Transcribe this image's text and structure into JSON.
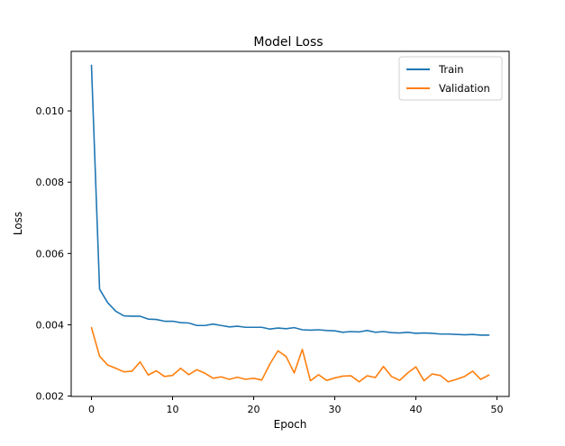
{
  "chart_data": {
    "type": "line",
    "title": "Model Loss",
    "xlabel": "Epoch",
    "ylabel": "Loss",
    "xlim": [
      -2.5,
      51.5
    ],
    "ylim": [
      0.00199,
      0.01167
    ],
    "xticks": [
      0,
      10,
      20,
      30,
      40,
      50
    ],
    "yticks": [
      0.002,
      0.004,
      0.006,
      0.008,
      0.01
    ],
    "ytick_labels": [
      "0.002",
      "0.004",
      "0.006",
      "0.008",
      "0.010"
    ],
    "grid": false,
    "legend_position": "top-right",
    "x": [
      0,
      1,
      2,
      3,
      4,
      5,
      6,
      7,
      8,
      9,
      10,
      11,
      12,
      13,
      14,
      15,
      16,
      17,
      18,
      19,
      20,
      21,
      22,
      23,
      24,
      25,
      26,
      27,
      28,
      29,
      30,
      31,
      32,
      33,
      34,
      35,
      36,
      37,
      38,
      39,
      40,
      41,
      42,
      43,
      44,
      45,
      46,
      47,
      48,
      49
    ],
    "series": [
      {
        "name": "Train",
        "color": "#1f77b4",
        "values": [
          0.01128,
          0.005,
          0.00462,
          0.00438,
          0.00425,
          0.00424,
          0.00424,
          0.00416,
          0.00415,
          0.0041,
          0.0041,
          0.00406,
          0.00405,
          0.00398,
          0.00398,
          0.00402,
          0.00398,
          0.00394,
          0.00396,
          0.00393,
          0.00393,
          0.00393,
          0.00388,
          0.00391,
          0.00389,
          0.00392,
          0.00386,
          0.00385,
          0.00386,
          0.00384,
          0.00383,
          0.00379,
          0.00381,
          0.0038,
          0.00384,
          0.00379,
          0.00381,
          0.00378,
          0.00377,
          0.00379,
          0.00376,
          0.00377,
          0.00376,
          0.00374,
          0.00374,
          0.00373,
          0.00372,
          0.00373,
          0.00371,
          0.00371
        ]
      },
      {
        "name": "Validation",
        "color": "#ff7f0e",
        "values": [
          0.00392,
          0.00312,
          0.00287,
          0.00278,
          0.00268,
          0.0027,
          0.00296,
          0.00259,
          0.00271,
          0.00255,
          0.00258,
          0.00278,
          0.0026,
          0.00274,
          0.00264,
          0.0025,
          0.00254,
          0.00247,
          0.00253,
          0.00247,
          0.0025,
          0.00245,
          0.0029,
          0.00327,
          0.00311,
          0.00265,
          0.00331,
          0.00243,
          0.0026,
          0.00244,
          0.00251,
          0.00256,
          0.00257,
          0.0024,
          0.00257,
          0.00252,
          0.00283,
          0.00255,
          0.00244,
          0.00265,
          0.00282,
          0.00243,
          0.00262,
          0.00258,
          0.0024,
          0.00247,
          0.00255,
          0.0027,
          0.00247,
          0.00259
        ]
      }
    ]
  }
}
